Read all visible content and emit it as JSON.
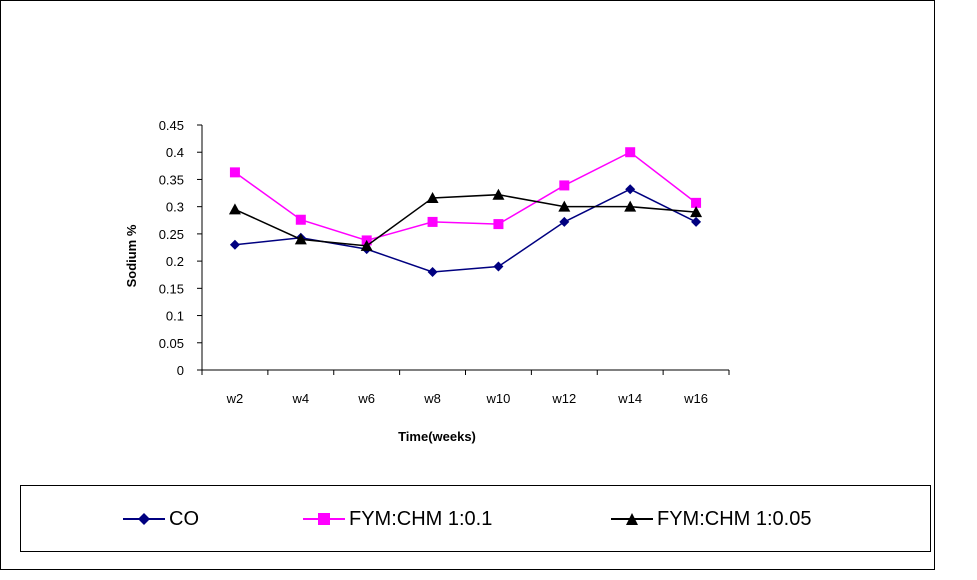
{
  "chart_data": {
    "type": "line",
    "title": "",
    "xlabel": "Time(weeks)",
    "ylabel": "Sodium %",
    "categories": [
      "w2",
      "w4",
      "w6",
      "w8",
      "w10",
      "w12",
      "w14",
      "w16"
    ],
    "ylim": [
      0,
      0.45
    ],
    "yticks": [
      "0",
      "0.05",
      "0.1",
      "0.15",
      "0.2",
      "0.25",
      "0.3",
      "0.35",
      "0.4",
      "0.45"
    ],
    "grid": false,
    "legend_position": "bottom",
    "series": [
      {
        "name": "CO",
        "values": [
          0.23,
          0.243,
          0.222,
          0.18,
          0.19,
          0.272,
          0.332,
          0.272
        ],
        "color": "#000080",
        "marker": "diamond"
      },
      {
        "name": "FYM:CHM 1:0.1",
        "values": [
          0.363,
          0.276,
          0.238,
          0.272,
          0.268,
          0.339,
          0.4,
          0.307
        ],
        "color": "#ff00ff",
        "marker": "square"
      },
      {
        "name": "FYM:CHM 1:0.05",
        "values": [
          0.295,
          0.24,
          0.228,
          0.316,
          0.322,
          0.3,
          0.3,
          0.29
        ],
        "color": "#000000",
        "marker": "triangle"
      }
    ]
  }
}
